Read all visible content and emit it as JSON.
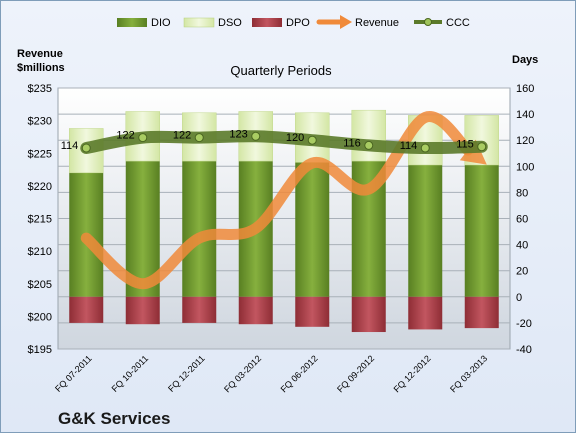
{
  "chart_data": {
    "type": "bar",
    "title": "Quarterly Periods",
    "company": "G&K Services",
    "left_axis_title": [
      "Revenue",
      "$millions"
    ],
    "right_axis_title": "Days",
    "categories": [
      "FQ 07-2011",
      "FQ 10-2011",
      "FQ 12-2011",
      "FQ 03-2012",
      "FQ 06-2012",
      "FQ 09-2012",
      "FQ 12-2012",
      "FQ 03-2013"
    ],
    "y_left": {
      "min": 195,
      "max": 235,
      "step": 5,
      "prefix": "$"
    },
    "y_right": {
      "min": -40,
      "max": 160,
      "step": 20
    },
    "series": [
      {
        "name": "DIO",
        "kind": "stacked-bar",
        "axis": "right",
        "color": "#6e9a2e",
        "values": [
          95,
          104,
          104,
          104,
          103,
          104,
          101,
          101
        ]
      },
      {
        "name": "DSO",
        "kind": "stacked-bar",
        "axis": "right",
        "color": "#e4f0c4",
        "values": [
          34,
          38,
          37,
          38,
          38,
          39,
          38,
          38
        ]
      },
      {
        "name": "DPO",
        "kind": "negative-bar",
        "axis": "right",
        "color": "#b5424b",
        "values": [
          -20,
          -21,
          -20,
          -21,
          -23,
          -27,
          -25,
          -24
        ]
      },
      {
        "name": "Revenue",
        "kind": "line",
        "axis": "left",
        "color": "#f08a3a",
        "values": [
          212.0,
          205.0,
          212.0,
          213.5,
          223.5,
          219.5,
          230.5,
          225.5
        ]
      },
      {
        "name": "CCC",
        "kind": "line",
        "axis": "right",
        "color": "#5b7a2a",
        "values": [
          114,
          122,
          122,
          123,
          120,
          116,
          114,
          115
        ]
      }
    ],
    "data_labels": [
      "114",
      "122",
      "122",
      "123",
      "120",
      "116",
      "114",
      "115"
    ],
    "grid": true,
    "legend_position": "top"
  }
}
